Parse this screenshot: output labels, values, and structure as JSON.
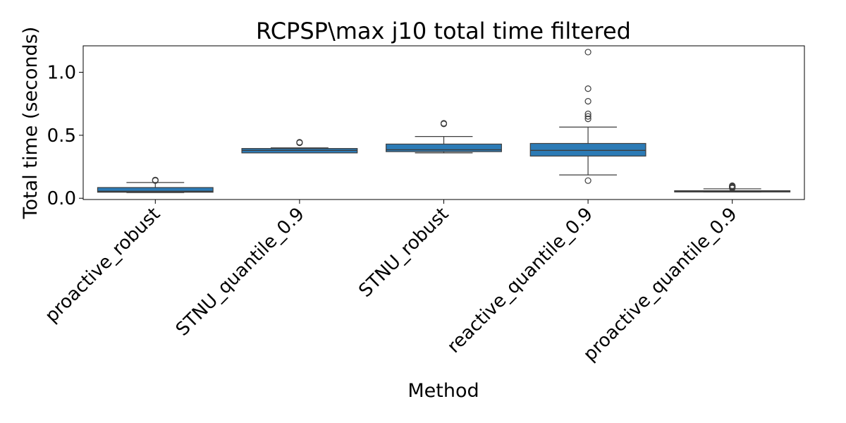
{
  "chart_data": {
    "type": "box",
    "title": "RCPSP\\max j10 total time filtered",
    "xlabel": "Method",
    "ylabel": "Total time (seconds)",
    "ylim": [
      -0.01,
      1.21
    ],
    "yticks": [
      0.0,
      0.5,
      1.0
    ],
    "ytick_labels": [
      "0.0",
      "0.5",
      "1.0"
    ],
    "grid": false,
    "box_color": "#2c7bb6",
    "categories": [
      "proactive_robust",
      "STNU_quantile_0.9",
      "STNU_robust",
      "reactive_quantile_0.9",
      "proactive_quantile_0.9"
    ],
    "boxes": [
      {
        "category": "proactive_robust",
        "whisker_low": 0.045,
        "q1": 0.048,
        "median": 0.055,
        "q3": 0.085,
        "whisker_high": 0.125,
        "outliers": [
          0.14,
          0.145
        ]
      },
      {
        "category": "STNU_quantile_0.9",
        "whisker_low": 0.36,
        "q1": 0.36,
        "median": 0.38,
        "q3": 0.395,
        "whisker_high": 0.4,
        "outliers": [
          0.44,
          0.445
        ]
      },
      {
        "category": "STNU_robust",
        "whisker_low": 0.36,
        "q1": 0.37,
        "median": 0.385,
        "q3": 0.43,
        "whisker_high": 0.49,
        "outliers": [
          0.59,
          0.595
        ]
      },
      {
        "category": "reactive_quantile_0.9",
        "whisker_low": 0.185,
        "q1": 0.335,
        "median": 0.38,
        "q3": 0.435,
        "whisker_high": 0.565,
        "outliers": [
          0.14,
          0.63,
          0.65,
          0.67,
          0.77,
          0.87,
          1.16
        ]
      },
      {
        "category": "proactive_quantile_0.9",
        "whisker_low": 0.05,
        "q1": 0.05,
        "median": 0.055,
        "q3": 0.06,
        "whisker_high": 0.075,
        "outliers": [
          0.08,
          0.085,
          0.09,
          0.095,
          0.1
        ]
      }
    ]
  }
}
